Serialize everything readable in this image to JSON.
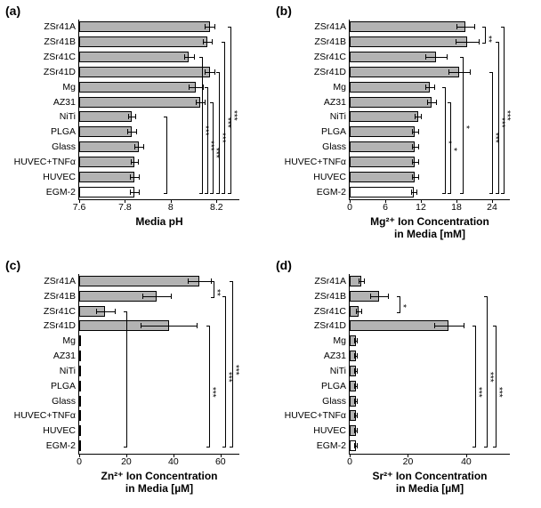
{
  "colors": {
    "bar_fill": "#b3b3b3",
    "bar_fill_white": "#ffffff",
    "border": "#000000",
    "bg": "#ffffff"
  },
  "typography": {
    "panel_label_fontsize": 14,
    "axis_label_fontsize": 12,
    "tick_fontsize": 10.5,
    "sig_fontsize": 10
  },
  "panels": {
    "a": {
      "label": "(a)",
      "xlabel": "Media pH",
      "xmin": 7.6,
      "xmax": 8.3,
      "xticks": [
        7.6,
        7.8,
        8.0,
        8.2
      ],
      "categories": [
        "ZSr41A",
        "ZSr41B",
        "ZSr41C",
        "ZSr41D",
        "Mg",
        "AZ31",
        "NiTi",
        "PLGA",
        "Glass",
        "HUVEC+TNFα",
        "HUVEC",
        "EGM-2"
      ],
      "values": [
        8.17,
        8.16,
        8.08,
        8.17,
        8.11,
        8.13,
        7.83,
        7.83,
        7.86,
        7.84,
        7.84,
        7.84
      ],
      "errors": [
        0.02,
        0.02,
        0.02,
        0.02,
        0.03,
        0.02,
        0.015,
        0.02,
        0.02,
        0.015,
        0.02,
        0.02
      ],
      "fill": [
        "g",
        "g",
        "g",
        "g",
        "g",
        "g",
        "g",
        "g",
        "g",
        "g",
        "g",
        "w"
      ],
      "sig": [
        {
          "from": 0,
          "to": 11,
          "x": 8.26,
          "label": "***"
        },
        {
          "from": 1,
          "to": 11,
          "x": 8.235,
          "label": "***"
        },
        {
          "from": 3,
          "to": 11,
          "x": 8.21,
          "label": "***"
        },
        {
          "from": 5,
          "to": 11,
          "x": 8.185,
          "label": "***"
        },
        {
          "from": 4,
          "to": 11,
          "x": 8.16,
          "label": "***"
        },
        {
          "from": 2,
          "to": 11,
          "x": 8.135,
          "label": "***"
        },
        {
          "from": 6,
          "to": 11,
          "x": 7.98,
          "label": "",
          "vline": true
        }
      ]
    },
    "b": {
      "label": "(b)",
      "xlabel": "Mg²⁺ Ion Concentration\nin Media [mM]",
      "xmin": 0,
      "xmax": 27,
      "xticks": [
        0,
        6,
        12,
        18,
        24
      ],
      "categories": [
        "ZSr41A",
        "ZSr41B",
        "ZSr41C",
        "ZSr41D",
        "Mg",
        "AZ31",
        "NiTi",
        "PLGA",
        "Glass",
        "HUVEC+TNFα",
        "HUVEC",
        "EGM-2"
      ],
      "values": [
        19.5,
        19.8,
        14.5,
        18.5,
        13.5,
        13.8,
        11.5,
        11.0,
        11.0,
        11.0,
        11.0,
        10.8
      ],
      "errors": [
        1.5,
        2.0,
        1.8,
        1.8,
        0.8,
        0.8,
        0.5,
        0.5,
        0.5,
        0.5,
        0.5,
        0.5
      ],
      "fill": [
        "g",
        "g",
        "g",
        "g",
        "g",
        "g",
        "g",
        "g",
        "g",
        "g",
        "g",
        "w"
      ],
      "sig": [
        {
          "from": 0,
          "to": 1,
          "x": 22.8,
          "label": "**",
          "small": true
        },
        {
          "from": 0,
          "to": 11,
          "x": 26.0,
          "label": "***"
        },
        {
          "from": 1,
          "to": 11,
          "x": 25.0,
          "label": "***"
        },
        {
          "from": 3,
          "to": 11,
          "x": 24.0,
          "label": "***"
        },
        {
          "from": 2,
          "to": 11,
          "x": 19.0,
          "label": "*"
        },
        {
          "from": 5,
          "to": 11,
          "x": 17.0,
          "label": "*"
        },
        {
          "from": 4,
          "to": 11,
          "x": 16.0,
          "label": "*"
        }
      ]
    },
    "c": {
      "label": "(c)",
      "xlabel": "Zn²⁺ Ion Concentration\nin Media [µM]",
      "xmin": 0,
      "xmax": 68,
      "xticks": [
        0,
        20,
        40,
        60
      ],
      "categories": [
        "ZSr41A",
        "ZSr41B",
        "ZSr41C",
        "ZSr41D",
        "Mg",
        "AZ31",
        "NiTi",
        "PLGA",
        "Glass",
        "HUVEC+TNFα",
        "HUVEC",
        "EGM-2"
      ],
      "values": [
        51,
        33,
        11,
        38,
        0.5,
        0.5,
        0.5,
        0.5,
        0.5,
        0.5,
        0.5,
        0.5
      ],
      "errors": [
        5,
        6,
        4,
        12,
        0,
        0,
        0,
        0,
        0,
        0,
        0,
        0
      ],
      "fill": [
        "g",
        "g",
        "g",
        "g",
        "g",
        "g",
        "g",
        "g",
        "g",
        "g",
        "g",
        "w"
      ],
      "sig": [
        {
          "from": 0,
          "to": 1,
          "x": 57,
          "label": "**",
          "small": true
        },
        {
          "from": 0,
          "to": 11,
          "x": 65,
          "label": "***"
        },
        {
          "from": 1,
          "to": 11,
          "x": 62,
          "label": "***"
        },
        {
          "from": 3,
          "to": 11,
          "x": 55,
          "label": "***"
        },
        {
          "from": 2,
          "to": 11,
          "x": 20,
          "label": ""
        }
      ]
    },
    "d": {
      "label": "(d)",
      "xlabel": "Sr²⁺ Ion Concentration\nin Media [µM]",
      "xmin": 0,
      "xmax": 55,
      "xticks": [
        0,
        20,
        40
      ],
      "categories": [
        "ZSr41A",
        "ZSr41B",
        "ZSr41C",
        "ZSr41D",
        "Mg",
        "AZ31",
        "NiTi",
        "PLGA",
        "Glass",
        "HUVEC+TNFα",
        "HUVEC",
        "EGM-2"
      ],
      "values": [
        4,
        10,
        3,
        34,
        2,
        2,
        2,
        2,
        2,
        2,
        2,
        2
      ],
      "errors": [
        1,
        3,
        1,
        5,
        0.5,
        0.5,
        0.5,
        0.5,
        0.5,
        0.5,
        0.5,
        0.5
      ],
      "fill": [
        "g",
        "g",
        "g",
        "g",
        "g",
        "g",
        "g",
        "g",
        "g",
        "g",
        "g",
        "w"
      ],
      "sig": [
        {
          "from": 1,
          "to": 2,
          "x": 17,
          "label": "*",
          "small": true
        },
        {
          "from": 1,
          "to": 11,
          "x": 47,
          "label": "***"
        },
        {
          "from": 3,
          "to": 11,
          "x": 50,
          "label": "***"
        },
        {
          "from": 3,
          "to": 11,
          "x": 43,
          "label": "***"
        }
      ]
    }
  }
}
